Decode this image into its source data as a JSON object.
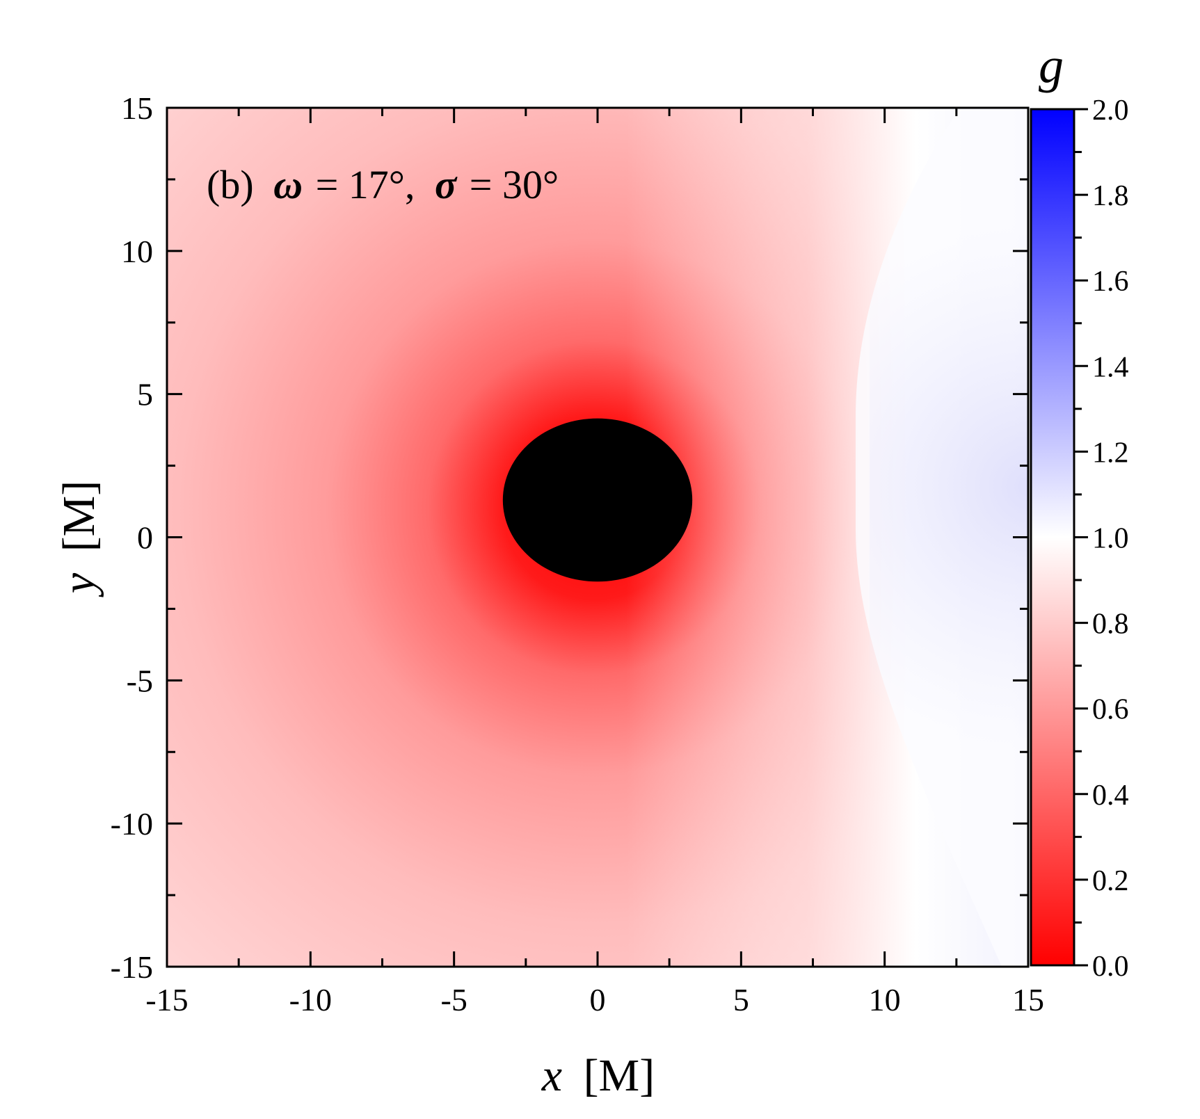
{
  "chart_data": {
    "type": "heatmap",
    "title": "",
    "annotation": {
      "panel": "(b)",
      "omega_symbol": "ω",
      "omega_value": "= 17°,",
      "sigma_symbol": "σ",
      "sigma_value": "= 30°"
    },
    "xlabel": {
      "var": "x",
      "unit": "[M]"
    },
    "ylabel": {
      "var": "y",
      "unit": "[M]"
    },
    "xlim": [
      -15,
      15
    ],
    "ylim": [
      -15,
      15
    ],
    "x_ticks": [
      -15,
      -10,
      -5,
      0,
      5,
      10,
      15
    ],
    "y_ticks": [
      -15,
      -10,
      -5,
      0,
      5,
      10,
      15
    ],
    "x_tick_labels": [
      "-15",
      "-10",
      "-5",
      "0",
      "5",
      "10",
      "15"
    ],
    "y_tick_labels": [
      "-15",
      "-10",
      "-5",
      "0",
      "5",
      "10",
      "15"
    ],
    "colorbar": {
      "label": "g",
      "range": [
        0.0,
        2.0
      ],
      "ticks": [
        0.0,
        0.2,
        0.4,
        0.6,
        0.8,
        1.0,
        1.2,
        1.4,
        1.6,
        1.8,
        2.0
      ],
      "tick_labels": [
        "0.0",
        "0.2",
        "0.4",
        "0.6",
        "0.8",
        "1.0",
        "1.2",
        "1.4",
        "1.6",
        "1.8",
        "2.0"
      ],
      "colors": {
        "low": "#ff0000",
        "mid": "#ffffff",
        "high": "#0000ff"
      }
    },
    "shadow": {
      "center": [
        0,
        1.3
      ],
      "radius_x": 3.3,
      "radius_y": 2.85,
      "color": "#000000"
    },
    "grid": false
  }
}
